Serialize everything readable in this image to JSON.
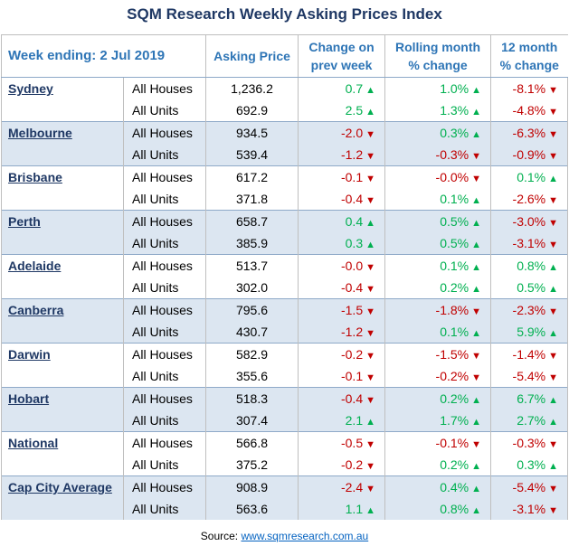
{
  "title": "SQM Research Weekly Asking Prices Index",
  "header": {
    "week": "Week ending: 2 Jul 2019",
    "asking": "Asking Price",
    "change_l1": "Change on",
    "change_l2": "prev week",
    "rolling_l1": "Rolling month",
    "rolling_l2": "% change",
    "year_l1": "12 month",
    "year_l2": "% change"
  },
  "colors": {
    "positive": "#00b050",
    "negative": "#c00000",
    "title": "#1f3864",
    "header": "#2e75b6",
    "shade": "#dce6f1"
  },
  "rows": [
    {
      "city": "Sydney",
      "type": "All Houses",
      "price": "1,236.2",
      "week": "0.7",
      "month": "1.0%",
      "year": "-8.1%"
    },
    {
      "city": "",
      "type": "All Units",
      "price": "692.9",
      "week": "2.5",
      "month": "1.3%",
      "year": "-4.8%"
    },
    {
      "city": "Melbourne",
      "type": "All Houses",
      "price": "934.5",
      "week": "-2.0",
      "month": "0.3%",
      "year": "-6.3%"
    },
    {
      "city": "",
      "type": "All Units",
      "price": "539.4",
      "week": "-1.2",
      "month": "-0.3%",
      "year": "-0.9%"
    },
    {
      "city": "Brisbane",
      "type": "All Houses",
      "price": "617.2",
      "week": "-0.1",
      "month": "-0.0%",
      "year": "0.1%"
    },
    {
      "city": "",
      "type": "All Units",
      "price": "371.8",
      "week": "-0.4",
      "month": "0.1%",
      "year": "-2.6%"
    },
    {
      "city": "Perth",
      "type": "All Houses",
      "price": "658.7",
      "week": "0.4",
      "month": "0.5%",
      "year": "-3.0%"
    },
    {
      "city": "",
      "type": "All Units",
      "price": "385.9",
      "week": "0.3",
      "month": "0.5%",
      "year": "-3.1%"
    },
    {
      "city": "Adelaide",
      "type": "All Houses",
      "price": "513.7",
      "week": "-0.0",
      "month": "0.1%",
      "year": "0.8%"
    },
    {
      "city": "",
      "type": "All Units",
      "price": "302.0",
      "week": "-0.4",
      "month": "0.2%",
      "year": "0.5%"
    },
    {
      "city": "Canberra",
      "type": "All Houses",
      "price": "795.6",
      "week": "-1.5",
      "month": "-1.8%",
      "year": "-2.3%"
    },
    {
      "city": "",
      "type": "All Units",
      "price": "430.7",
      "week": "-1.2",
      "month": "0.1%",
      "year": "5.9%"
    },
    {
      "city": "Darwin",
      "type": "All Houses",
      "price": "582.9",
      "week": "-0.2",
      "month": "-1.5%",
      "year": "-1.4%"
    },
    {
      "city": "",
      "type": "All Units",
      "price": "355.6",
      "week": "-0.1",
      "month": "-0.2%",
      "year": "-5.4%"
    },
    {
      "city": "Hobart",
      "type": "All Houses",
      "price": "518.3",
      "week": "-0.4",
      "month": "0.2%",
      "year": "6.7%"
    },
    {
      "city": "",
      "type": "All Units",
      "price": "307.4",
      "week": "2.1",
      "month": "1.7%",
      "year": "2.7%"
    },
    {
      "city": "National",
      "type": "All Houses",
      "price": "566.8",
      "week": "-0.5",
      "month": "-0.1%",
      "year": "-0.3%"
    },
    {
      "city": "",
      "type": "All Units",
      "price": "375.2",
      "week": "-0.2",
      "month": "0.2%",
      "year": "0.3%"
    },
    {
      "city": "Cap City Average",
      "type": "All Houses",
      "price": "908.9",
      "week": "-2.4",
      "month": "0.4%",
      "year": "-5.4%"
    },
    {
      "city": "",
      "type": "All Units",
      "price": "563.6",
      "week": "1.1",
      "month": "0.8%",
      "year": "-3.1%"
    }
  ],
  "source": {
    "prefix": "Source: ",
    "link": "www.sqmresearch.com.au"
  }
}
